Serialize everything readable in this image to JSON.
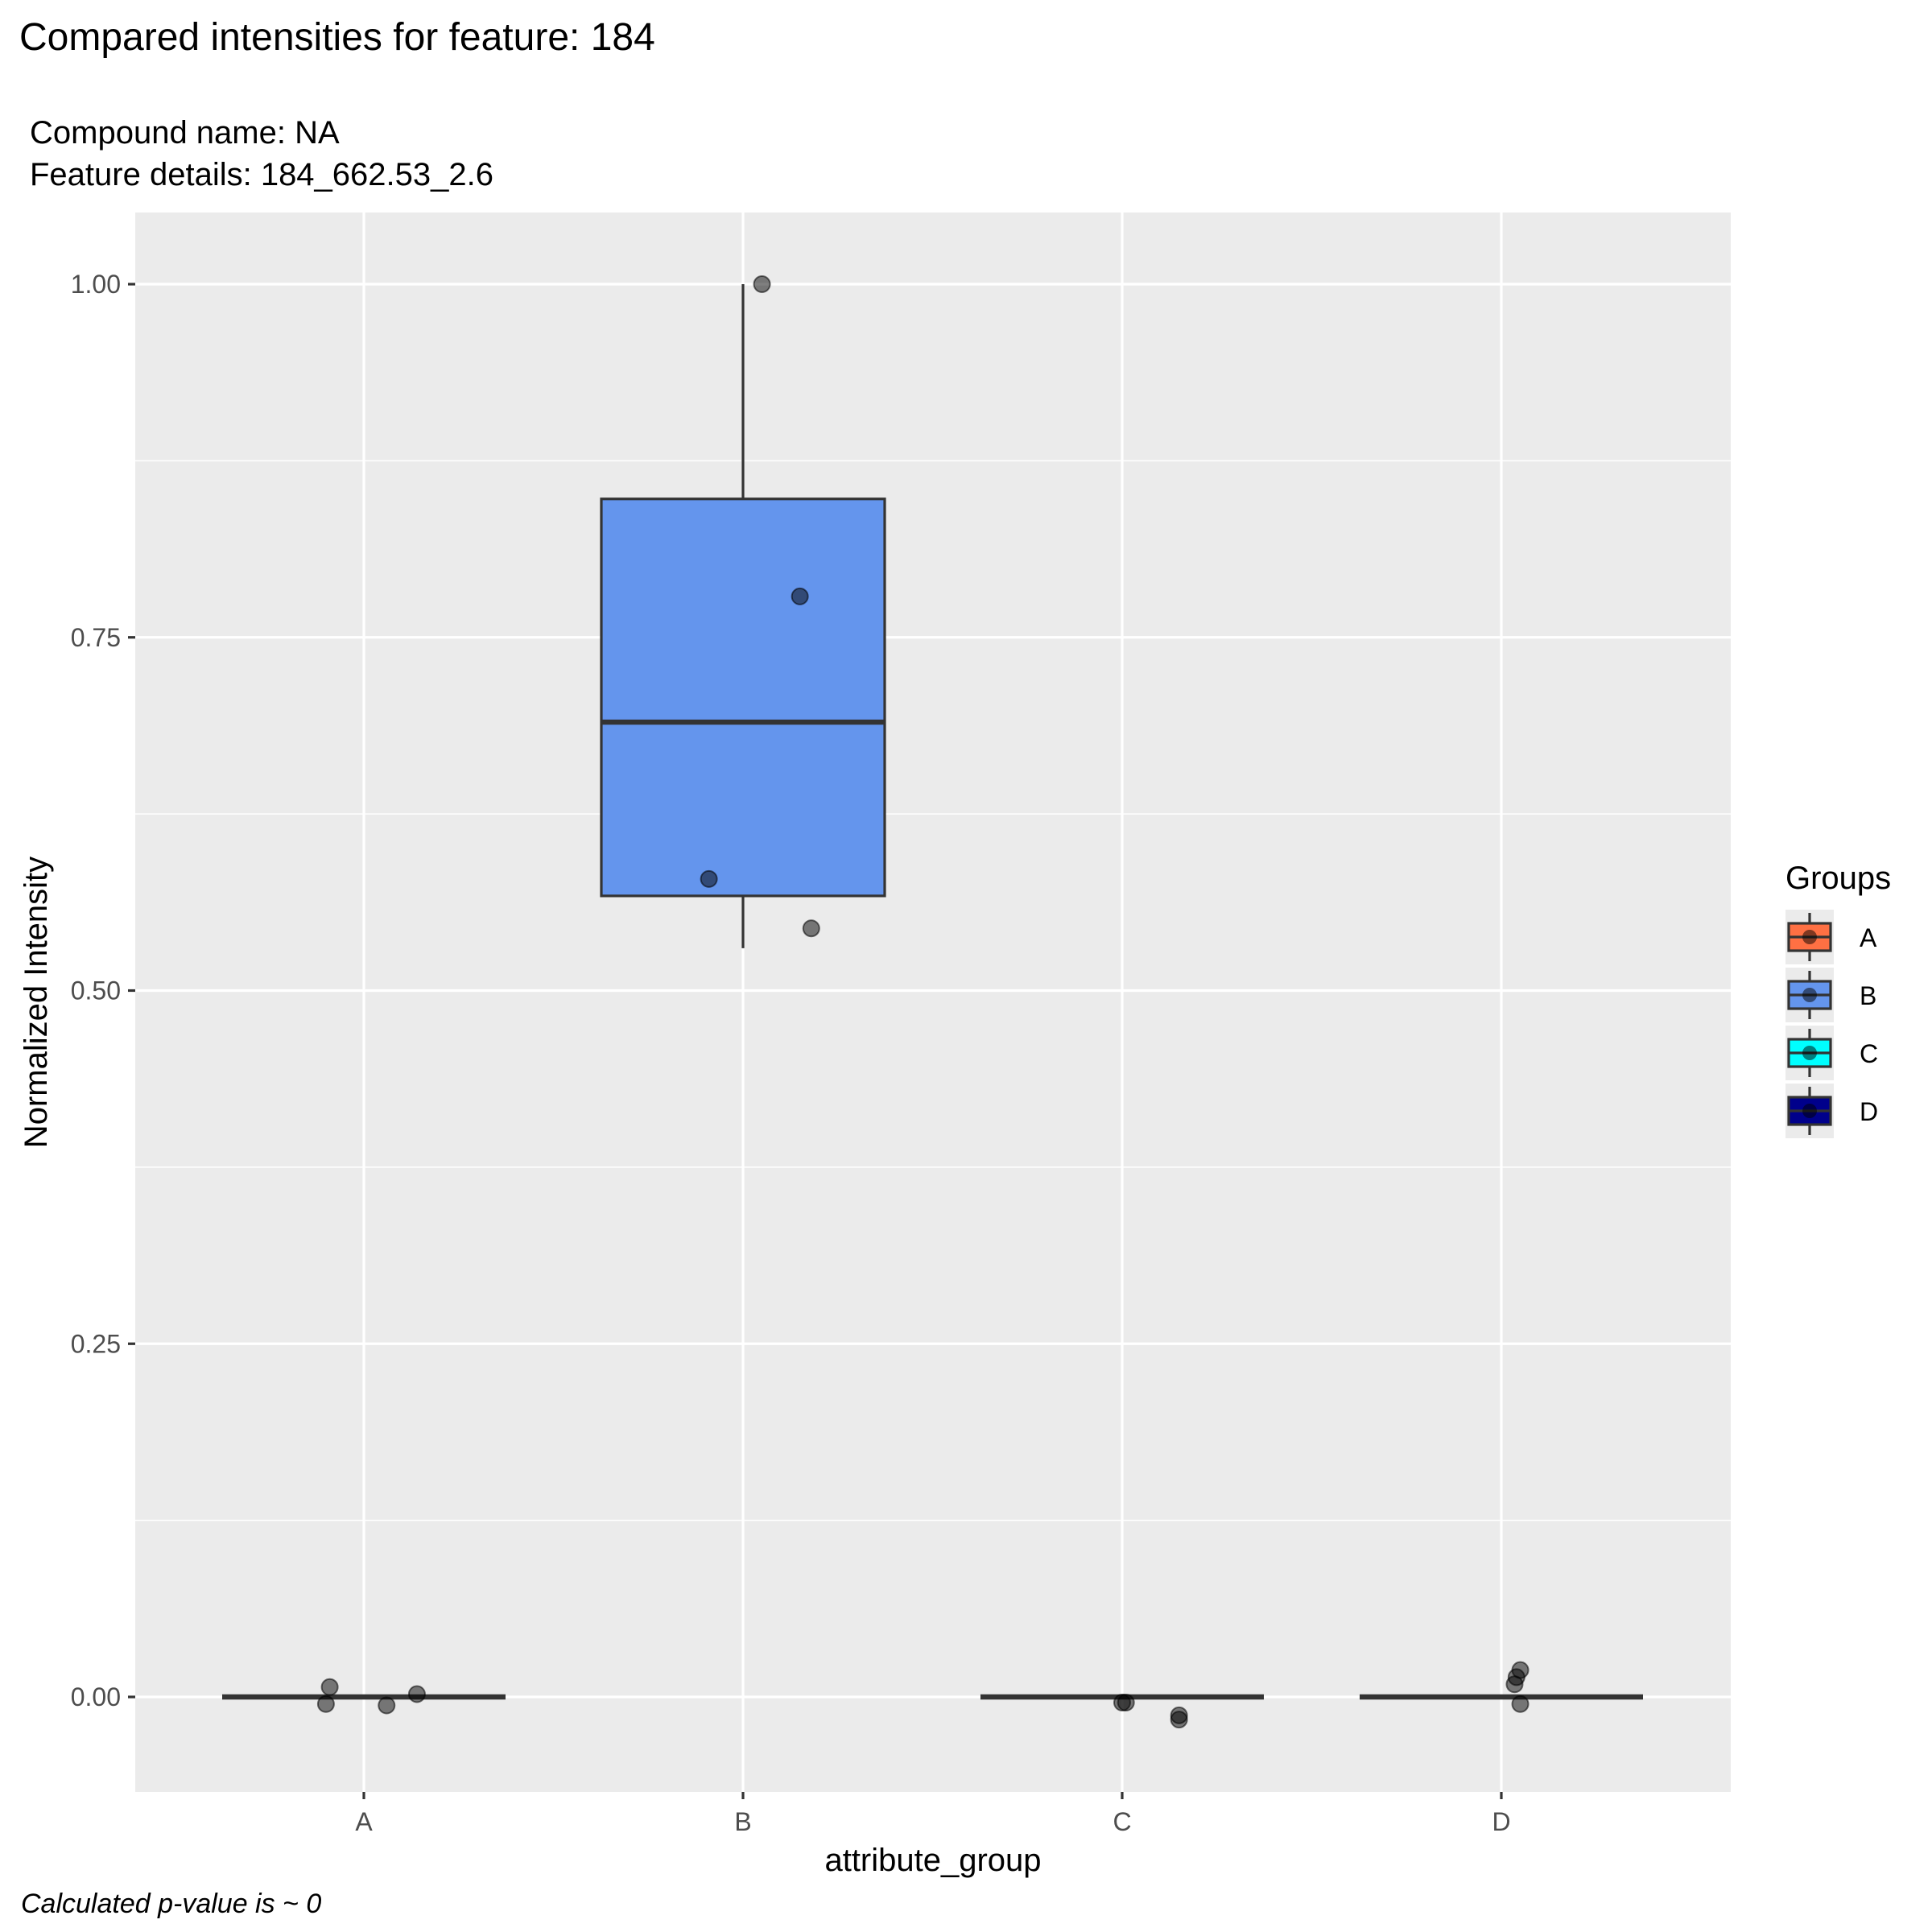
{
  "chart_data": {
    "type": "box",
    "title": "Compared intensities for feature: 184",
    "subtitle_lines": [
      "Compound name:  NA",
      "Feature details:  184_662.53_2.6"
    ],
    "xlabel": "attribute_group",
    "ylabel": "Normalized Intensity",
    "caption": "Calculated p-value is ~  0",
    "ylim": [
      -0.065,
      1.05
    ],
    "yticks": [
      0.0,
      0.25,
      0.5,
      0.75,
      1.0
    ],
    "ytick_labels": [
      "0.00",
      "0.25",
      "0.50",
      "0.75",
      "1.00"
    ],
    "categories": [
      "A",
      "B",
      "C",
      "D"
    ],
    "grid": true,
    "legend": {
      "title": "Groups",
      "position": "right"
    },
    "colors": {
      "A": "#ff7043",
      "B": "#6495ed",
      "C": "#00ffff",
      "D": "#00008b"
    },
    "boxes": [
      {
        "group": "A",
        "min": 0.0,
        "q1": 0.0,
        "median": 0.0,
        "q3": 0.0,
        "max": 0.0
      },
      {
        "group": "B",
        "min": 0.53,
        "q1": 0.567,
        "median": 0.69,
        "q3": 0.848,
        "max": 1.0
      },
      {
        "group": "C",
        "min": 0.0,
        "q1": 0.0,
        "median": 0.0,
        "q3": 0.0,
        "max": 0.0
      },
      {
        "group": "D",
        "min": 0.0,
        "q1": 0.0,
        "median": 0.0,
        "q3": 0.0,
        "max": 0.0
      }
    ],
    "points": [
      {
        "group": "A",
        "jitter": -0.09,
        "y": 0.007
      },
      {
        "group": "A",
        "jitter": -0.1,
        "y": -0.005
      },
      {
        "group": "A",
        "jitter": 0.06,
        "y": -0.006
      },
      {
        "group": "A",
        "jitter": 0.14,
        "y": 0.002
      },
      {
        "group": "B",
        "jitter": 0.05,
        "y": 1.0
      },
      {
        "group": "B",
        "jitter": 0.15,
        "y": 0.779
      },
      {
        "group": "B",
        "jitter": -0.09,
        "y": 0.579
      },
      {
        "group": "B",
        "jitter": 0.18,
        "y": 0.544
      },
      {
        "group": "C",
        "jitter": 0.0,
        "y": -0.004
      },
      {
        "group": "C",
        "jitter": 0.01,
        "y": -0.004
      },
      {
        "group": "C",
        "jitter": 0.15,
        "y": -0.013
      },
      {
        "group": "C",
        "jitter": 0.15,
        "y": -0.016
      },
      {
        "group": "D",
        "jitter": 0.05,
        "y": 0.019
      },
      {
        "group": "D",
        "jitter": 0.04,
        "y": 0.014
      },
      {
        "group": "D",
        "jitter": 0.035,
        "y": 0.009
      },
      {
        "group": "D",
        "jitter": 0.05,
        "y": -0.005
      }
    ]
  }
}
